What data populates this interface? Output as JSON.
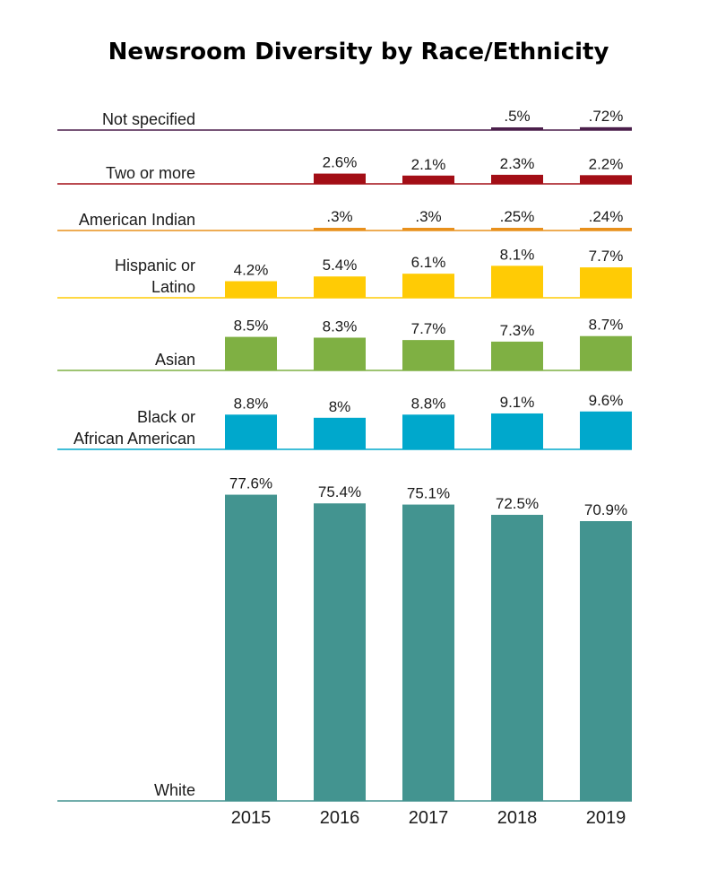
{
  "chart_data": {
    "type": "bar",
    "title": "Newsroom Diversity by Race/Ethnicity",
    "categories": [
      "2015",
      "2016",
      "2017",
      "2018",
      "2019"
    ],
    "unit": "%",
    "series": [
      {
        "name": "Not specified",
        "label_lines": [
          "Not specified"
        ],
        "color": "#4b1f4b",
        "values": [
          null,
          null,
          null,
          0.5,
          0.72
        ],
        "value_labels": [
          "",
          "",
          "",
          ".5%",
          ".72%"
        ]
      },
      {
        "name": "Two or more",
        "label_lines": [
          "Two or more"
        ],
        "color": "#a30e16",
        "values": [
          null,
          2.6,
          2.1,
          2.3,
          2.2
        ],
        "value_labels": [
          "",
          "2.6%",
          "2.1%",
          "2.3%",
          "2.2%"
        ]
      },
      {
        "name": "American Indian",
        "label_lines": [
          "American Indian"
        ],
        "color": "#e8901c",
        "values": [
          null,
          0.3,
          0.3,
          0.25,
          0.24
        ],
        "value_labels": [
          "",
          ".3%",
          ".3%",
          ".25%",
          ".24%"
        ]
      },
      {
        "name": "Hispanic or Latino",
        "label_lines": [
          "Hispanic or",
          "Latino"
        ],
        "color": "#ffcb05",
        "values": [
          4.2,
          5.4,
          6.1,
          8.1,
          7.7
        ],
        "value_labels": [
          "4.2%",
          "5.4%",
          "6.1%",
          "8.1%",
          "7.7%"
        ]
      },
      {
        "name": "Asian",
        "label_lines": [
          "Asian"
        ],
        "color": "#7fb043",
        "values": [
          8.5,
          8.3,
          7.7,
          7.3,
          8.7
        ],
        "value_labels": [
          "8.5%",
          "8.3%",
          "7.7%",
          "7.3%",
          "8.7%"
        ]
      },
      {
        "name": "Black or African American",
        "label_lines": [
          "Black or",
          "African American"
        ],
        "color": "#00a8cc",
        "values": [
          8.8,
          8.0,
          8.8,
          9.1,
          9.6
        ],
        "value_labels": [
          "8.8%",
          "8%",
          "8.8%",
          "9.1%",
          "9.6%"
        ]
      },
      {
        "name": "White",
        "label_lines": [
          "White"
        ],
        "color": "#439490",
        "values": [
          77.6,
          75.4,
          75.1,
          72.5,
          70.9
        ],
        "value_labels": [
          "77.6%",
          "75.4%",
          "75.1%",
          "72.5%",
          "70.9%"
        ]
      }
    ],
    "grid": false,
    "legend": "none"
  }
}
